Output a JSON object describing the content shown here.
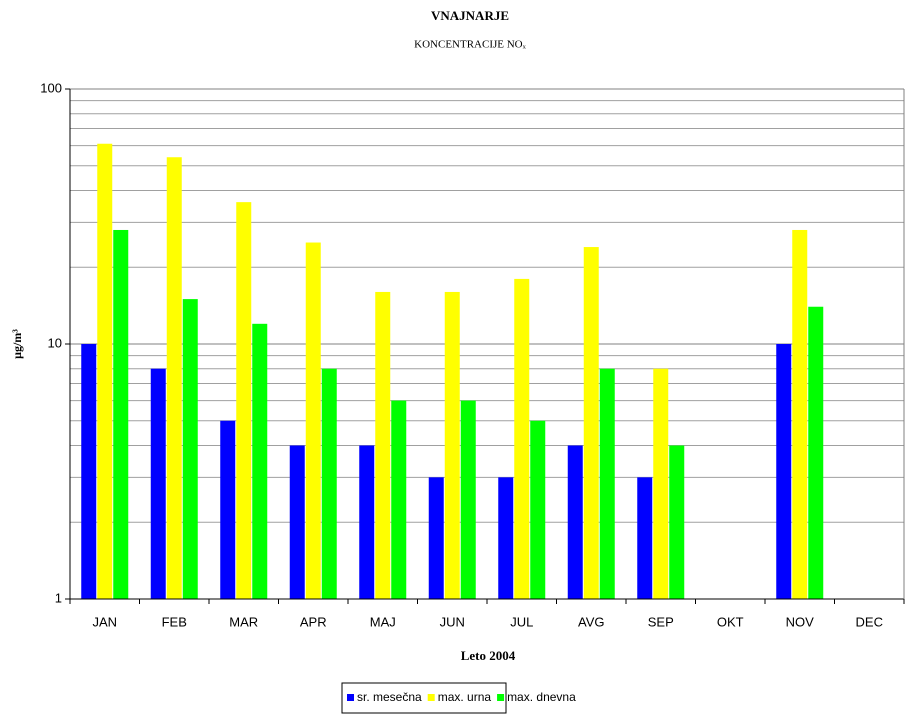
{
  "chart_data": {
    "type": "bar",
    "title": "VNAJNARJE",
    "subtitle": "KONCENTRACIJE NOₓ",
    "x_label": "Leto 2004",
    "y_label": "μg/m³",
    "categories": [
      "JAN",
      "FEB",
      "MAR",
      "APR",
      "MAJ",
      "JUN",
      "JUL",
      "AVG",
      "SEP",
      "OKT",
      "NOV",
      "DEC"
    ],
    "series": [
      {
        "name": "sr. mesečna",
        "color": "#0000ff",
        "values": [
          10,
          8,
          5,
          4,
          4,
          3,
          3,
          4,
          3,
          null,
          10,
          null
        ]
      },
      {
        "name": "max. urna",
        "color": "#ffff00",
        "values": [
          61,
          54,
          36,
          25,
          16,
          16,
          18,
          24,
          8,
          null,
          28,
          null
        ]
      },
      {
        "name": "max. dnevna",
        "color": "#00ff00",
        "values": [
          28,
          15,
          12,
          8,
          6,
          6,
          5,
          8,
          4,
          null,
          14,
          null
        ]
      }
    ],
    "log_scale": true,
    "ylim": [
      1,
      100
    ],
    "yticks": [
      1,
      10,
      100
    ],
    "minor_yticks": [
      2,
      3,
      4,
      5,
      6,
      7,
      8,
      9,
      20,
      30,
      40,
      50,
      60,
      70,
      80,
      90
    ],
    "grid": true,
    "legend": "bottom"
  }
}
